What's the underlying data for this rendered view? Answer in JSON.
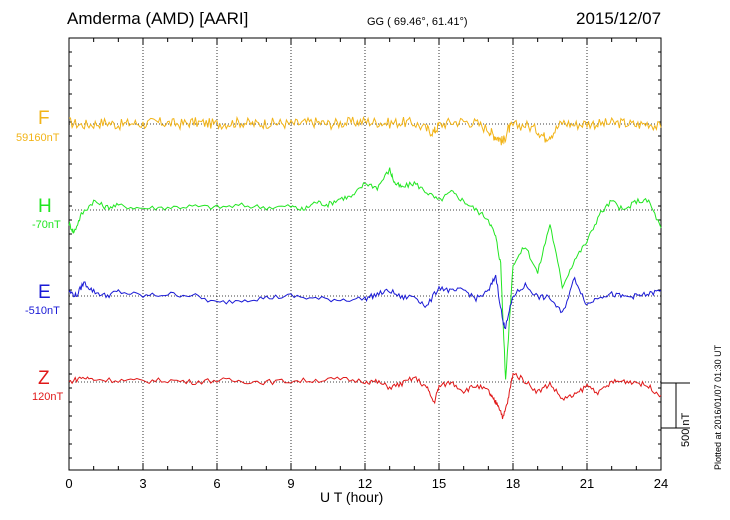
{
  "header": {
    "title": "Amderma (AMD)  [AARI]",
    "coords": "GG ( 69.46°,  61.41°)",
    "date": "2015/12/07"
  },
  "footer": {
    "xlabel": "U T (hour)",
    "plotted": "Plotted at 2016/01/07 01:30 UT",
    "scale": "500 nT"
  },
  "colors": {
    "F": "#f2b418",
    "H": "#22e622",
    "E": "#1a1ad6",
    "Z": "#e01818"
  },
  "chart_data": {
    "type": "line",
    "title": "Amderma (AMD)  [AARI]",
    "xlabel": "U T (hour)",
    "xlim": [
      0,
      24
    ],
    "xticks": [
      "0",
      "3",
      "6",
      "9",
      "12",
      "15",
      "18",
      "21",
      "24"
    ],
    "scale_bar_nT": 500,
    "series": [
      {
        "name": "F",
        "baseline_label": "59160nT",
        "baseline_nT": 59160,
        "x": [
          0,
          0.5,
          1,
          1.5,
          2,
          2.5,
          3,
          3.5,
          4,
          4.5,
          5,
          5.5,
          6,
          6.5,
          7,
          7.5,
          8,
          8.5,
          9,
          9.5,
          10,
          10.5,
          11,
          11.5,
          12,
          12.5,
          13,
          13.5,
          14,
          14.5,
          14.8,
          15,
          15.5,
          16,
          16.5,
          17,
          17.2,
          17.4,
          17.6,
          17.8,
          18,
          18.5,
          19,
          19.3,
          19.6,
          20,
          20.5,
          21,
          21.5,
          22,
          22.5,
          23,
          23.5,
          24
        ],
        "y": [
          20,
          -10,
          0,
          20,
          -10,
          10,
          0,
          20,
          10,
          0,
          20,
          10,
          0,
          10,
          20,
          0,
          10,
          10,
          0,
          10,
          20,
          0,
          10,
          20,
          30,
          20,
          10,
          20,
          10,
          -60,
          -90,
          -10,
          20,
          30,
          10,
          -60,
          -120,
          -150,
          -200,
          -60,
          -20,
          -10,
          -70,
          -150,
          -100,
          20,
          -10,
          10,
          0,
          10,
          10,
          -10,
          10,
          -40
        ],
        "unit": "nT relative to baseline"
      },
      {
        "name": "H",
        "baseline_label": "-70nT",
        "baseline_nT": -70,
        "x": [
          0,
          0.2,
          0.5,
          1,
          1.5,
          2,
          3,
          4,
          5,
          6,
          7,
          8,
          9,
          9.5,
          10,
          10.5,
          11,
          11.5,
          12,
          12.5,
          13,
          13.2,
          13.5,
          14,
          14.5,
          15,
          15.5,
          16,
          16.5,
          17,
          17.3,
          17.5,
          17.7,
          18,
          18.5,
          19,
          19.5,
          20,
          20.5,
          21,
          21.5,
          22,
          22.5,
          23,
          23.5,
          24
        ],
        "y": [
          -150,
          -250,
          -50,
          100,
          30,
          50,
          20,
          30,
          40,
          30,
          50,
          30,
          40,
          0,
          90,
          60,
          130,
          150,
          300,
          250,
          450,
          300,
          250,
          300,
          200,
          100,
          200,
          100,
          0,
          -100,
          -300,
          -600,
          -1900,
          -600,
          -400,
          -700,
          -150,
          -850,
          -550,
          -350,
          -50,
          100,
          -10,
          100,
          100,
          -200
        ],
        "unit": "nT relative to baseline"
      },
      {
        "name": "E",
        "baseline_label": "-510nT",
        "baseline_nT": -510,
        "x": [
          0,
          0.3,
          0.6,
          1,
          1.5,
          2,
          3,
          4,
          5,
          6,
          7,
          8,
          9,
          10,
          11,
          12,
          12.5,
          13,
          13.5,
          14,
          14.5,
          15,
          15.5,
          16,
          16.5,
          17,
          17.3,
          17.6,
          17.7,
          18,
          18.5,
          19,
          19.5,
          20,
          20.5,
          21,
          21.5,
          22,
          22.5,
          23,
          23.5,
          24
        ],
        "y": [
          50,
          0,
          150,
          50,
          0,
          50,
          0,
          20,
          10,
          -80,
          -40,
          -20,
          0,
          -30,
          -40,
          -30,
          20,
          60,
          -20,
          0,
          -120,
          100,
          50,
          70,
          -30,
          50,
          230,
          -300,
          -350,
          0,
          120,
          -10,
          -20,
          -200,
          200,
          -100,
          0,
          20,
          -10,
          0,
          20,
          60
        ],
        "unit": "nT relative to baseline"
      },
      {
        "name": "Z",
        "baseline_label": "120nT",
        "baseline_nT": 120,
        "x": [
          0,
          0.5,
          1,
          2,
          3,
          4,
          5,
          6,
          7,
          8,
          9,
          10,
          11,
          12,
          12.5,
          13,
          13.5,
          14,
          14.5,
          14.8,
          15,
          15.5,
          16,
          16.5,
          17,
          17.2,
          17.4,
          17.6,
          17.8,
          18,
          18.5,
          19,
          19.5,
          20,
          20.5,
          21,
          21.5,
          22,
          22.5,
          23,
          23.5,
          24
        ],
        "y": [
          0,
          50,
          30,
          20,
          10,
          20,
          0,
          20,
          10,
          0,
          10,
          20,
          30,
          10,
          0,
          -60,
          -20,
          50,
          -60,
          -230,
          -50,
          0,
          -100,
          -40,
          -100,
          -200,
          -250,
          -400,
          -200,
          100,
          10,
          -110,
          -20,
          -190,
          -150,
          -40,
          -120,
          0,
          10,
          0,
          -50,
          -150
        ],
        "unit": "nT relative to baseline"
      }
    ]
  }
}
